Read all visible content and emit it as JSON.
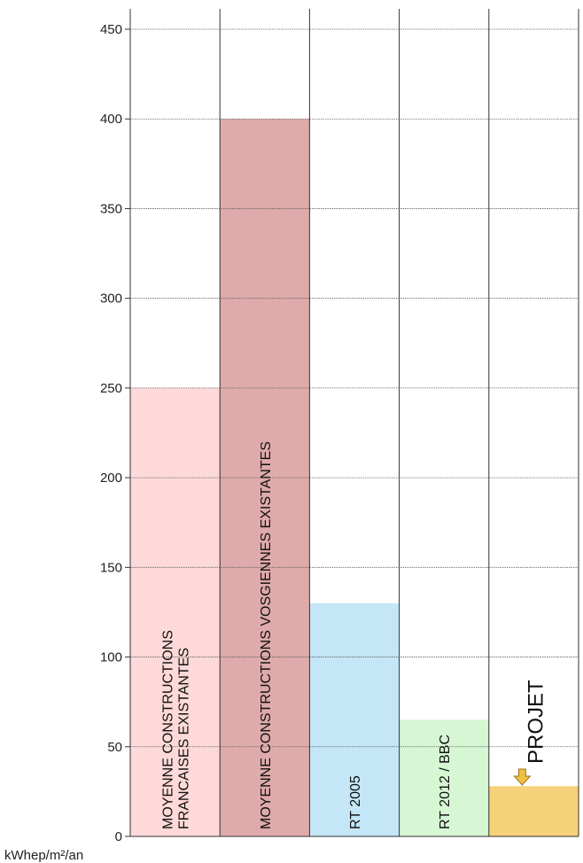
{
  "chart_data": {
    "type": "bar",
    "unit_label": "kWhep/m²/an",
    "ylim": [
      0,
      450
    ],
    "yticks": [
      0,
      50,
      100,
      150,
      200,
      250,
      300,
      350,
      400,
      450
    ],
    "grid": true,
    "bars": [
      {
        "labels": [
          "MOYENNE CONSTRUCTIONS",
          "FRANCAISES EXISTANTES"
        ],
        "value": 250,
        "color": "#fdd9d9"
      },
      {
        "labels": [
          "MOYENNE CONSTRUCTIONS VOSGIENNES EXISTANTES"
        ],
        "value": 400,
        "color": "#dfaaaa"
      },
      {
        "labels": [
          "RT 2005"
        ],
        "value": 130,
        "color": "#c4e6f6"
      },
      {
        "labels": [
          "RT 2012 / BBC"
        ],
        "value": 65,
        "color": "#d6f6d4"
      },
      {
        "labels": [
          "PROJET"
        ],
        "value": 28,
        "color": "#f6d27a",
        "arrow_color": "#f0c040"
      }
    ]
  }
}
